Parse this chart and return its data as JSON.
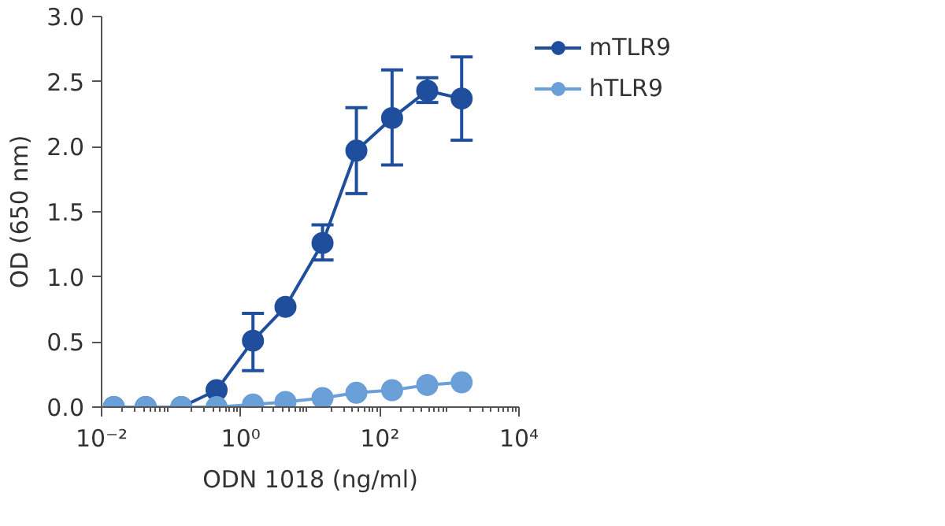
{
  "chart_data": {
    "type": "line",
    "xlabel": "ODN 1018 (ng/ml)",
    "ylabel": "OD (650 nm)",
    "log": "x",
    "x": [
      0.015,
      0.043,
      0.14,
      0.45,
      1.5,
      4.4,
      15,
      46,
      150,
      480,
      1500
    ],
    "series": [
      {
        "name": "mTLR9",
        "color": "#1f4e9c",
        "values": [
          0,
          0,
          0,
          0.13,
          0.51,
          0.77,
          1.26,
          1.97,
          2.22,
          2.43,
          2.37
        ],
        "errors": [
          null,
          null,
          null,
          null,
          [
            0.28,
            0.72
          ],
          null,
          [
            1.13,
            1.4
          ],
          [
            1.64,
            2.3
          ],
          [
            1.86,
            2.59
          ],
          [
            2.34,
            2.53
          ],
          [
            2.05,
            2.69
          ]
        ]
      },
      {
        "name": "hTLR9",
        "color": "#6a9fd8",
        "values": [
          0,
          0,
          0,
          0,
          0.02,
          0.04,
          0.07,
          0.11,
          0.13,
          0.17,
          0.19
        ]
      }
    ],
    "xlim": [
      0.01,
      10000
    ],
    "xticks": [
      {
        "value": 0.01,
        "label": "10⁻²"
      },
      {
        "value": 1,
        "label": "10⁰"
      },
      {
        "value": 100,
        "label": "10²"
      },
      {
        "value": 10000,
        "label": "10⁴"
      }
    ],
    "ylim": [
      0,
      3
    ],
    "yticks": [
      {
        "value": 0,
        "label": "0.0"
      },
      {
        "value": 0.5,
        "label": "0.5"
      },
      {
        "value": 1,
        "label": "1.0"
      },
      {
        "value": 1.5,
        "label": "1.5"
      },
      {
        "value": 2,
        "label": "2.0"
      },
      {
        "value": 2.5,
        "label": "2.5"
      },
      {
        "value": 3,
        "label": "3.0"
      }
    ],
    "grid": false,
    "legend": "right",
    "marker": "circle",
    "line_style": "solid"
  }
}
